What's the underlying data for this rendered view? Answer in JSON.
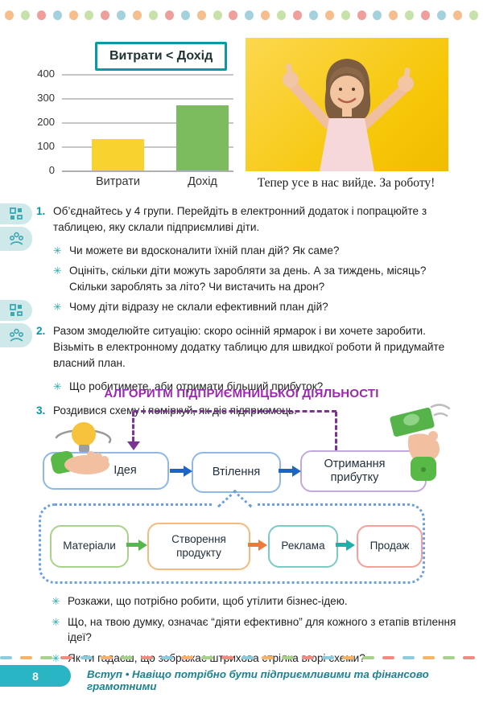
{
  "decorations": {
    "dot_colors": [
      "#f6bd8d",
      "#c6e2a9",
      "#ef9e9b",
      "#a3d2de"
    ],
    "dash_colors": [
      "#8ecbdc",
      "#f6b46a",
      "#a9d18e",
      "#f28b82"
    ]
  },
  "icons": {
    "bullet": "✳"
  },
  "chart_data": {
    "type": "bar",
    "title": "Витрати < Дохід",
    "categories": [
      "Витрати",
      "Дохід"
    ],
    "values": [
      130,
      270
    ],
    "bar_colors": [
      "#f8d22e",
      "#7cbb5e"
    ],
    "ylim": [
      0,
      400
    ],
    "yticks": [
      0,
      100,
      200,
      300,
      400
    ],
    "grid": true,
    "legend": "none",
    "xlabel": "",
    "ylabel": ""
  },
  "photo": {
    "caption": "Тепер усе в нас вийде. За роботу!"
  },
  "tasks": [
    {
      "number": "1.",
      "text": "Об’єднайтесь у 4 групи. Перейдіть в електронний додаток і попрацюйте з таблицею, яку склали підприємливі діти.",
      "bullets": [
        "Чи можете ви вдосконалити їхній план дій? Як саме?",
        "Оцініть, скільки діти можуть заробляти за день. А за тиждень, місяць? Скільки зароблять за літо? Чи вистачить на дрон?",
        "Чому діти відразу не склали ефективний план дій?"
      ]
    },
    {
      "number": "2.",
      "text": "Разом змоделюйте ситуацію: скоро осінній ярмарок і ви хочете заробити. Візьміть в електронному додатку таблицю для швидкої роботи й придумайте власний план.",
      "bullets": [
        "Що робитимете, аби отримати більший прибуток?"
      ]
    },
    {
      "number": "3.",
      "text": "Роздивися схему і поміркуй, як діє підприємець.",
      "bullets": []
    }
  ],
  "diagram": {
    "title": "АЛГОРИТМ ПІДПРИЄМНИЦЬКОЇ ДІЯЛЬНОСТІ",
    "main_steps": [
      "Ідея",
      "Втілення",
      "Отримання прибутку"
    ],
    "sub_steps": [
      "Матеріали",
      "Створення продукту",
      "Реклама",
      "Продаж"
    ]
  },
  "questions": [
    "Розкажи, що потрібно робити, щоб утілити бізнес-ідею.",
    "Що, на твою думку, означає “діяти ефективно” для кожного з етапів втілення ідеї?",
    "Як ти гадаєш, що зображає штрихова стрілка вгорі схеми?"
  ],
  "footer": {
    "page_number": "8",
    "text": "Вступ • Навіщо потрібно бути підприємливими та фінансово грамотними"
  }
}
